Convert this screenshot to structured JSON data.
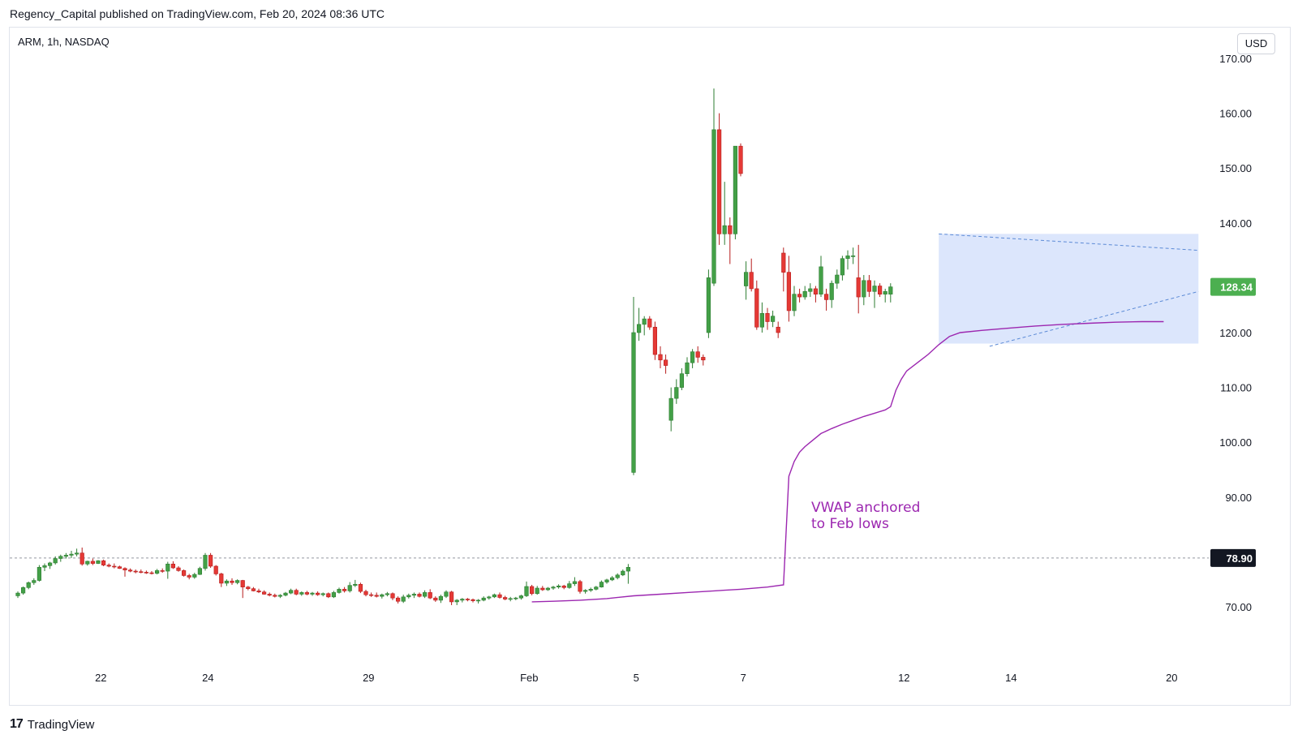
{
  "header": {
    "published_by": "Regency_Capital published on TradingView.com, Feb 20, 2024 08:36 UTC"
  },
  "symbol_label": "ARM, 1h, NASDAQ",
  "currency_button": "USD",
  "footer": {
    "brand_mark": "17",
    "brand": "TradingView"
  },
  "colors": {
    "up": "#26a69a",
    "up_fill": "#4caf50",
    "down": "#e53935",
    "vwap": "#9c27b0",
    "box_fill": "#d6e2fb",
    "trendline": "#5b8ad6",
    "last_price_bg": "#4caf50",
    "ref_price_bg": "#131722"
  },
  "chart_data": {
    "type": "candlestick",
    "ylim": [
      60,
      172
    ],
    "y_ticks": [
      {
        "value": 70,
        "label": "70.00"
      },
      {
        "value": 90,
        "label": "90.00"
      },
      {
        "value": 100,
        "label": "100.00"
      },
      {
        "value": 110,
        "label": "110.00"
      },
      {
        "value": 120,
        "label": "120.00"
      },
      {
        "value": 140,
        "label": "140.00"
      },
      {
        "value": 150,
        "label": "150.00"
      },
      {
        "value": 160,
        "label": "160.00"
      },
      {
        "value": 170,
        "label": "170.00"
      }
    ],
    "x_ticks": [
      {
        "index": 15.5,
        "label": "22"
      },
      {
        "index": 35.5,
        "label": "24"
      },
      {
        "index": 65.5,
        "label": "29"
      },
      {
        "index": 95.5,
        "label": "Feb"
      },
      {
        "index": 115.5,
        "label": "5"
      },
      {
        "index": 135.5,
        "label": "7"
      },
      {
        "index": 165.5,
        "label": "12"
      },
      {
        "index": 185.5,
        "label": "14"
      },
      {
        "index": 215.5,
        "label": "20"
      }
    ],
    "last_price": {
      "value": 128.34,
      "label": "128.34"
    },
    "ref_price": {
      "value": 78.9,
      "label": "78.90"
    },
    "candles": [
      [
        72.0,
        72.8,
        71.6,
        72.5
      ],
      [
        72.5,
        73.7,
        72.2,
        73.5
      ],
      [
        73.5,
        74.6,
        73.2,
        74.4
      ],
      [
        74.4,
        75.2,
        74.0,
        74.8
      ],
      [
        74.8,
        77.6,
        74.6,
        77.2
      ],
      [
        77.2,
        77.9,
        76.5,
        77.5
      ],
      [
        77.5,
        78.2,
        76.9,
        78.0
      ],
      [
        78.0,
        79.2,
        77.7,
        78.8
      ],
      [
        78.8,
        79.5,
        78.2,
        79.2
      ],
      [
        79.2,
        79.8,
        78.8,
        79.4
      ],
      [
        79.4,
        80.2,
        78.9,
        79.6
      ],
      [
        79.6,
        80.6,
        79.2,
        79.8
      ],
      [
        79.8,
        80.8,
        77.5,
        77.8
      ],
      [
        77.8,
        78.4,
        77.5,
        78.3
      ],
      [
        78.3,
        78.8,
        77.6,
        77.9
      ],
      [
        77.9,
        78.5,
        77.8,
        78.4
      ],
      [
        78.4,
        78.6,
        77.4,
        77.6
      ],
      [
        77.6,
        77.9,
        77.2,
        77.4
      ],
      [
        77.4,
        77.9,
        77.0,
        77.3
      ],
      [
        77.3,
        77.5,
        76.9,
        77.0
      ],
      [
        77.0,
        77.2,
        75.5,
        76.7
      ],
      [
        76.7,
        77.0,
        76.3,
        76.5
      ],
      [
        76.5,
        76.8,
        76.1,
        76.4
      ],
      [
        76.4,
        76.8,
        76.1,
        76.3
      ],
      [
        76.3,
        76.6,
        76.0,
        76.2
      ],
      [
        76.2,
        76.5,
        75.9,
        76.1
      ],
      [
        76.1,
        76.9,
        75.9,
        76.6
      ],
      [
        76.6,
        77.0,
        76.2,
        76.5
      ],
      [
        76.5,
        78.2,
        75.1,
        77.8
      ],
      [
        77.8,
        78.3,
        76.9,
        77.1
      ],
      [
        77.1,
        77.4,
        76.4,
        76.6
      ],
      [
        76.6,
        76.8,
        75.5,
        75.7
      ],
      [
        75.7,
        76.0,
        75.0,
        75.4
      ],
      [
        75.4,
        76.2,
        75.1,
        75.9
      ],
      [
        75.9,
        77.3,
        75.8,
        77.0
      ],
      [
        77.0,
        79.8,
        76.6,
        79.4
      ],
      [
        79.4,
        79.8,
        77.1,
        77.4
      ],
      [
        77.4,
        77.6,
        75.7,
        76.0
      ],
      [
        76.0,
        76.2,
        73.6,
        74.3
      ],
      [
        74.3,
        75.0,
        73.8,
        74.7
      ],
      [
        74.7,
        75.2,
        74.0,
        74.4
      ],
      [
        74.4,
        75.0,
        74.1,
        74.8
      ],
      [
        74.8,
        74.9,
        71.6,
        73.6
      ],
      [
        73.6,
        73.8,
        73.0,
        73.3
      ],
      [
        73.3,
        73.6,
        72.8,
        72.9
      ],
      [
        72.9,
        73.3,
        72.5,
        72.7
      ],
      [
        72.7,
        73.0,
        72.2,
        72.3
      ],
      [
        72.3,
        72.6,
        71.9,
        72.1
      ],
      [
        72.1,
        72.4,
        71.7,
        71.9
      ],
      [
        71.9,
        72.3,
        71.6,
        72.1
      ],
      [
        72.1,
        72.7,
        71.9,
        72.5
      ],
      [
        72.5,
        73.3,
        72.3,
        73.0
      ],
      [
        73.0,
        73.3,
        72.1,
        72.3
      ],
      [
        72.3,
        72.8,
        72.0,
        72.6
      ],
      [
        72.6,
        72.9,
        72.1,
        72.3
      ],
      [
        72.3,
        72.7,
        72.0,
        72.5
      ],
      [
        72.5,
        72.8,
        72.0,
        72.2
      ],
      [
        72.2,
        72.6,
        71.9,
        72.4
      ],
      [
        72.4,
        72.6,
        71.6,
        71.8
      ],
      [
        71.8,
        72.9,
        71.6,
        72.6
      ],
      [
        72.6,
        73.5,
        72.4,
        73.2
      ],
      [
        73.2,
        73.6,
        72.6,
        72.9
      ],
      [
        72.9,
        74.5,
        72.6,
        73.9
      ],
      [
        73.9,
        74.9,
        73.6,
        74.1
      ],
      [
        74.1,
        74.4,
        72.5,
        72.8
      ],
      [
        72.8,
        73.1,
        71.9,
        72.2
      ],
      [
        72.2,
        72.6,
        71.8,
        72.1
      ],
      [
        72.1,
        72.6,
        71.7,
        71.9
      ],
      [
        71.9,
        72.4,
        71.5,
        72.2
      ],
      [
        72.2,
        72.7,
        71.9,
        72.4
      ],
      [
        72.4,
        72.6,
        71.2,
        71.6
      ],
      [
        71.6,
        71.9,
        70.6,
        71.0
      ],
      [
        71.0,
        72.2,
        70.7,
        71.8
      ],
      [
        71.8,
        72.4,
        71.5,
        72.1
      ],
      [
        72.1,
        72.6,
        71.6,
        72.3
      ],
      [
        72.3,
        72.6,
        71.7,
        71.9
      ],
      [
        71.9,
        73.0,
        71.6,
        72.6
      ],
      [
        72.6,
        73.2,
        71.4,
        71.6
      ],
      [
        71.6,
        71.9,
        70.9,
        71.2
      ],
      [
        71.2,
        72.2,
        70.7,
        71.9
      ],
      [
        71.9,
        73.0,
        71.6,
        72.7
      ],
      [
        72.7,
        72.9,
        70.3,
        70.9
      ],
      [
        70.9,
        71.4,
        70.3,
        71.2
      ],
      [
        71.2,
        71.6,
        70.8,
        71.4
      ],
      [
        71.4,
        71.6,
        71.0,
        71.3
      ],
      [
        71.3,
        71.5,
        70.8,
        71.1
      ],
      [
        71.1,
        71.4,
        70.6,
        71.2
      ],
      [
        71.2,
        71.9,
        71.0,
        71.6
      ],
      [
        71.6,
        72.0,
        71.3,
        71.8
      ],
      [
        71.8,
        72.4,
        71.6,
        72.2
      ],
      [
        72.2,
        72.6,
        71.5,
        71.7
      ],
      [
        71.7,
        72.0,
        71.2,
        71.4
      ],
      [
        71.4,
        71.8,
        71.0,
        71.5
      ],
      [
        71.5,
        71.8,
        71.2,
        71.6
      ],
      [
        71.6,
        72.2,
        71.3,
        72.0
      ],
      [
        72.0,
        74.6,
        71.8,
        73.7
      ],
      [
        73.7,
        74.0,
        72.1,
        72.4
      ],
      [
        72.4,
        73.8,
        72.2,
        73.4
      ],
      [
        73.4,
        73.8,
        72.9,
        73.1
      ],
      [
        73.1,
        73.6,
        72.9,
        73.4
      ],
      [
        73.4,
        73.8,
        73.1,
        73.6
      ],
      [
        73.6,
        74.1,
        73.3,
        73.8
      ],
      [
        73.8,
        74.0,
        73.2,
        73.5
      ],
      [
        73.5,
        74.7,
        73.3,
        74.2
      ],
      [
        74.2,
        75.4,
        73.8,
        74.6
      ],
      [
        74.6,
        74.9,
        72.4,
        72.8
      ],
      [
        72.8,
        73.2,
        72.4,
        73.0
      ],
      [
        73.0,
        73.5,
        72.7,
        73.2
      ],
      [
        73.2,
        73.8,
        73.0,
        73.6
      ],
      [
        73.6,
        74.8,
        73.5,
        74.5
      ],
      [
        74.5,
        75.1,
        74.2,
        74.9
      ],
      [
        74.9,
        75.6,
        74.7,
        75.3
      ],
      [
        75.3,
        76.1,
        75.0,
        75.8
      ],
      [
        75.8,
        76.8,
        75.6,
        76.5
      ],
      [
        76.5,
        77.8,
        74.2,
        77.2
      ],
      [
        94.5,
        126.5,
        94.0,
        120.0
      ],
      [
        120.0,
        124.5,
        118.5,
        121.5
      ],
      [
        121.5,
        123.0,
        119.5,
        122.5
      ],
      [
        122.5,
        123.0,
        120.5,
        121.0
      ],
      [
        121.0,
        122.0,
        115.0,
        116.0
      ],
      [
        116.0,
        117.5,
        113.5,
        115.0
      ],
      [
        115.0,
        116.0,
        112.5,
        114.0
      ],
      [
        104.0,
        110.0,
        102.0,
        108.0
      ],
      [
        108.0,
        111.5,
        107.0,
        110.0
      ],
      [
        110.0,
        113.5,
        109.5,
        112.5
      ],
      [
        112.5,
        115.5,
        112.0,
        114.5
      ],
      [
        114.5,
        117.0,
        113.5,
        116.5
      ],
      [
        116.5,
        117.5,
        114.5,
        115.5
      ],
      [
        115.5,
        116.0,
        114.0,
        115.0
      ],
      [
        120.0,
        131.5,
        119.0,
        130.0
      ],
      [
        129.0,
        164.5,
        128.5,
        157.0
      ],
      [
        157.0,
        160.0,
        136.0,
        138.0
      ],
      [
        138.0,
        147.5,
        136.0,
        139.5
      ],
      [
        139.5,
        141.0,
        132.5,
        138.0
      ],
      [
        138.0,
        154.0,
        137.0,
        154.0
      ],
      [
        154.0,
        154.5,
        148.5,
        149.0
      ],
      [
        128.5,
        133.0,
        126.0,
        131.0
      ],
      [
        131.0,
        133.5,
        127.5,
        128.0
      ],
      [
        128.0,
        129.5,
        120.5,
        121.0
      ],
      [
        121.0,
        125.5,
        120.0,
        123.5
      ],
      [
        123.5,
        124.5,
        120.5,
        122.0
      ],
      [
        122.0,
        124.0,
        121.0,
        123.0
      ],
      [
        121.0,
        122.0,
        119.0,
        120.0
      ],
      [
        134.5,
        135.5,
        127.5,
        131.0
      ],
      [
        131.0,
        134.0,
        122.0,
        124.0
      ],
      [
        124.0,
        128.5,
        123.0,
        127.0
      ],
      [
        127.0,
        128.0,
        125.5,
        126.5
      ],
      [
        126.5,
        128.5,
        126.0,
        127.5
      ],
      [
        127.5,
        129.0,
        126.5,
        128.0
      ],
      [
        128.0,
        128.5,
        125.5,
        127.0
      ],
      [
        127.0,
        134.0,
        126.5,
        132.0
      ],
      [
        127.0,
        128.0,
        124.0,
        126.0
      ],
      [
        126.0,
        129.5,
        124.5,
        129.0
      ],
      [
        129.0,
        131.5,
        128.0,
        130.5
      ],
      [
        130.5,
        134.0,
        129.5,
        133.5
      ],
      [
        133.5,
        135.0,
        131.5,
        134.0
      ],
      [
        134.0,
        135.5,
        132.5,
        134.0
      ],
      [
        130.0,
        136.0,
        123.5,
        126.5
      ],
      [
        126.5,
        130.5,
        125.0,
        129.5
      ],
      [
        129.5,
        130.5,
        126.5,
        127.5
      ],
      [
        127.5,
        129.5,
        124.5,
        128.5
      ],
      [
        128.5,
        129.0,
        126.5,
        127.0
      ],
      [
        127.0,
        128.0,
        125.5,
        127.5
      ],
      [
        127.0,
        129.0,
        125.5,
        128.34
      ]
    ],
    "vwap": {
      "label_line1": "VWAP anchored",
      "label_line2": "to Feb lows",
      "points": [
        [
          96,
          70.9
        ],
        [
          100,
          71.0
        ],
        [
          105,
          71.2
        ],
        [
          110,
          71.5
        ],
        [
          115,
          72.0
        ],
        [
          120,
          72.3
        ],
        [
          125,
          72.6
        ],
        [
          130,
          72.9
        ],
        [
          135,
          73.2
        ],
        [
          140,
          73.6
        ],
        [
          143,
          74.0
        ],
        [
          144,
          93.8
        ],
        [
          145,
          96.5
        ],
        [
          146,
          98.2
        ],
        [
          147,
          99.2
        ],
        [
          148,
          100.0
        ],
        [
          150,
          101.6
        ],
        [
          152,
          102.5
        ],
        [
          154,
          103.3
        ],
        [
          156,
          104.0
        ],
        [
          158,
          104.7
        ],
        [
          160,
          105.3
        ],
        [
          162,
          105.9
        ],
        [
          163,
          106.5
        ],
        [
          164,
          109.5
        ],
        [
          165,
          111.5
        ],
        [
          166,
          113.0
        ],
        [
          168,
          114.5
        ],
        [
          170,
          116.0
        ],
        [
          172,
          117.8
        ],
        [
          174,
          119.3
        ],
        [
          176,
          120.0
        ],
        [
          180,
          120.4
        ],
        [
          185,
          120.8
        ],
        [
          190,
          121.2
        ],
        [
          195,
          121.5
        ],
        [
          200,
          121.7
        ],
        [
          205,
          121.9
        ],
        [
          210,
          122.0
        ],
        [
          214,
          122.0
        ]
      ]
    },
    "annotations": {
      "box": {
        "i0": 172.0,
        "i1": 220.5,
        "top": 138.0,
        "bottom": 118.0
      },
      "upper_trendline": {
        "i0": 172.0,
        "v0": 138.0,
        "i1": 220.5,
        "v1": 135.0
      },
      "lower_trendline": {
        "i0": 181.5,
        "v0": 117.5,
        "i1": 220.5,
        "v1": 127.5
      }
    }
  }
}
